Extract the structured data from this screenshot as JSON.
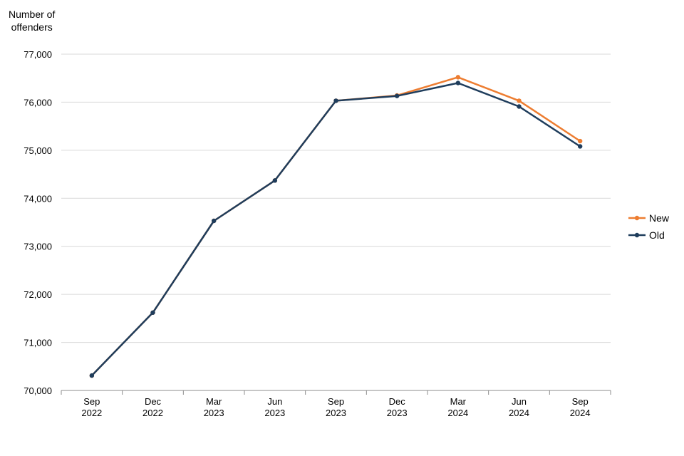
{
  "chart_data": {
    "type": "line",
    "title": "",
    "ylabel": "Number of\noffenders",
    "xlabel": "",
    "categories": [
      "Sep\n2022",
      "Dec\n2022",
      "Mar\n2023",
      "Jun\n2023",
      "Sep\n2023",
      "Dec\n2023",
      "Mar\n2024",
      "Jun\n2024",
      "Sep\n2024"
    ],
    "ylim": [
      70000,
      77000
    ],
    "yticks": [
      70000,
      71000,
      72000,
      73000,
      74000,
      75000,
      76000,
      77000
    ],
    "ytick_labels": [
      "70,000",
      "71,000",
      "72,000",
      "73,000",
      "74,000",
      "75,000",
      "76,000",
      "77,000"
    ],
    "grid": "horizontal",
    "legend_position": "right",
    "series": [
      {
        "name": "New",
        "color": "#ED7D31",
        "values": [
          70310,
          71620,
          73530,
          74370,
          76030,
          76140,
          76520,
          76030,
          75190
        ]
      },
      {
        "name": "Old",
        "color": "#1F3D5C",
        "values": [
          70310,
          71620,
          73530,
          74370,
          76030,
          76130,
          76400,
          75910,
          75080
        ]
      }
    ]
  }
}
